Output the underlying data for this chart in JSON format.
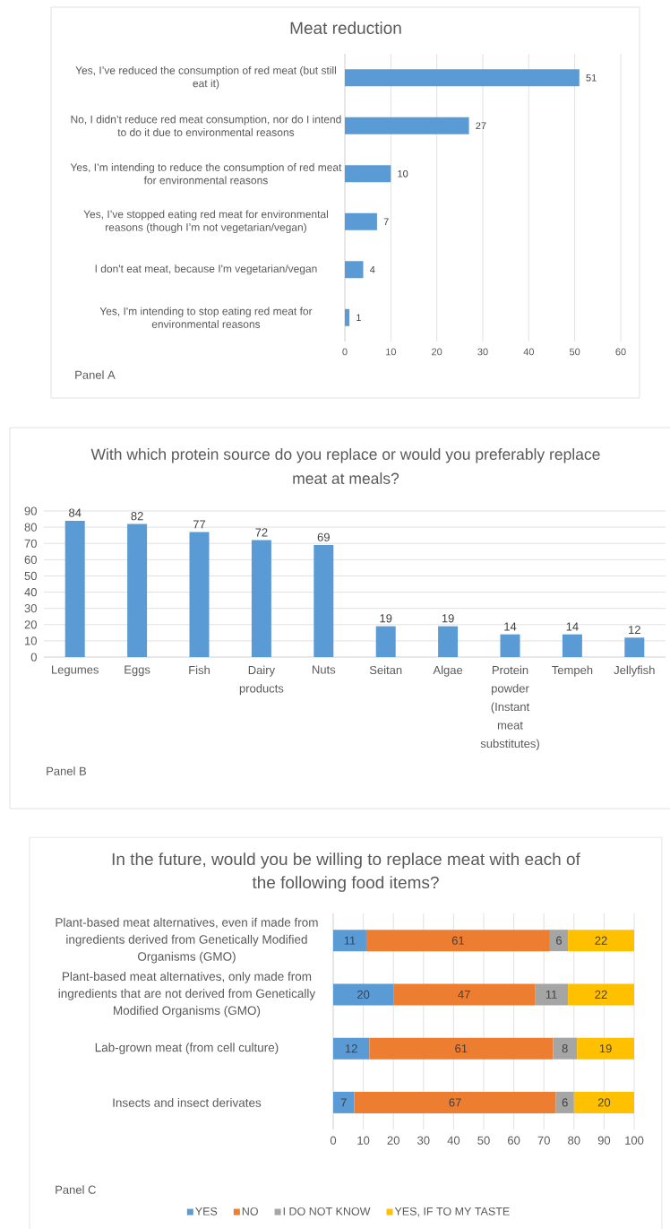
{
  "chart_data": [
    {
      "type": "bar",
      "orientation": "horizontal",
      "title": "Meat reduction",
      "categories": [
        "Yes, I’ve reduced the consumption of red meat (but still eat it)",
        "No, I didn’t reduce red meat consumption, nor do I intend to do it due to environmental reasons",
        "Yes, I’m intending to reduce the consumption of red meat for environmental reasons",
        "Yes, I’ve stopped eating red meat for environmental reasons (though I’m not vegetarian/vegan)",
        "I don't eat meat, because I'm vegetarian/vegan",
        "Yes, I'm intending to stop eating red meat for environmental reasons"
      ],
      "values": [
        51,
        27,
        10,
        7,
        4,
        1
      ],
      "color": "#5b9bd5",
      "xlim": [
        0,
        60
      ],
      "xticks": [
        0,
        10,
        20,
        30,
        40,
        50,
        60
      ],
      "grid": "x",
      "data_labels": true,
      "annotations": [
        "Panel A"
      ]
    },
    {
      "type": "bar",
      "title": "With which protein source do you replace or would you preferably replace meat at meals?",
      "categories": [
        "Legumes",
        "Eggs",
        "Fish",
        "Dairy products",
        "Nuts",
        "Seitan",
        "Algae",
        "Protein powder (Instant meat substitutes)",
        "Tempeh",
        "Jellyfish"
      ],
      "values": [
        84,
        82,
        77,
        72,
        69,
        19,
        19,
        14,
        14,
        12
      ],
      "color": "#5b9bd5",
      "ylim": [
        0,
        90
      ],
      "yticks": [
        0,
        10,
        20,
        30,
        40,
        50,
        60,
        70,
        80,
        90
      ],
      "grid": "y",
      "data_labels": true,
      "annotations": [
        "Panel B"
      ]
    },
    {
      "type": "bar",
      "orientation": "horizontal",
      "stacked": true,
      "title": "In the future, would you be willing to replace meat with each of the following food items?",
      "categories": [
        "Plant-based meat alternatives, even if made from ingredients derived from Genetically Modified Organisms (GMO)",
        "Plant-based meat alternatives, only made from ingredients that are not derived from Genetically Modified Organisms (GMO)",
        "Lab-grown meat (from cell culture)",
        "Insects and insect derivates"
      ],
      "series": [
        {
          "name": "YES",
          "color": "#5b9bd5",
          "values": [
            11,
            20,
            12,
            7
          ]
        },
        {
          "name": "NO",
          "color": "#ed7d31",
          "values": [
            61,
            47,
            61,
            67
          ]
        },
        {
          "name": "I DO NOT KNOW",
          "color": "#a5a5a5",
          "values": [
            6,
            11,
            8,
            6
          ]
        },
        {
          "name": "YES, IF TO MY TASTE",
          "color": "#ffc000",
          "values": [
            22,
            22,
            19,
            20
          ]
        }
      ],
      "xlim": [
        0,
        100
      ],
      "xticks": [
        0,
        10,
        20,
        30,
        40,
        50,
        60,
        70,
        80,
        90,
        100
      ],
      "grid": "x",
      "legend": "bottom",
      "data_labels": true,
      "annotations": [
        "Panel C"
      ]
    }
  ]
}
